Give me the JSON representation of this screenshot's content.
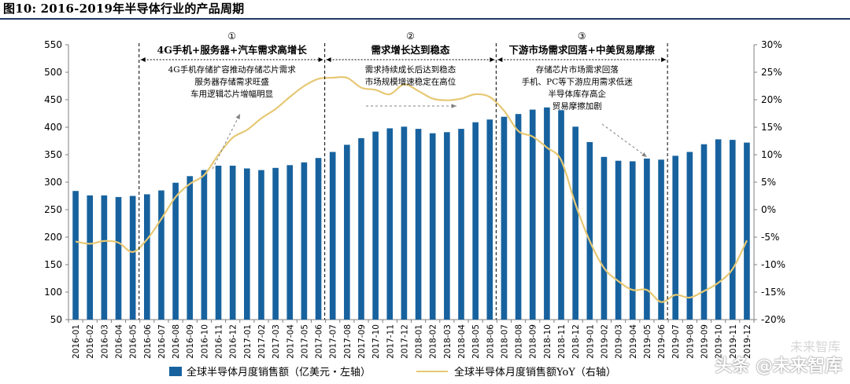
{
  "figure_title": "图10:  2016-2019年半导体行业的产品周期",
  "watermark_top": "未来智库",
  "watermark_bottom": "头条 @未来智库",
  "legend": {
    "bar_label": "全球半导体月度销售额（亿美元・左轴）",
    "line_label": "全球半导体月度销售额YoY（右轴）"
  },
  "colors": {
    "bar": "#17629e",
    "line": "#e6c874",
    "title_rule": "#1f3864"
  },
  "phases": [
    {
      "marker": "①",
      "title": "4G手机+服务器+汽车需求高增长",
      "notes": [
        "4G手机存储扩容推动存储芯片需求",
        "服务器存储需求旺盛",
        "车用逻辑芯片增幅明显"
      ]
    },
    {
      "marker": "②",
      "title": "需求增长达到稳态",
      "notes": [
        "需求持续成长后达到稳态",
        "市场规模增速稳定在高位"
      ]
    },
    {
      "marker": "③",
      "title": "下游市场需求回落+中美贸易摩擦",
      "notes": [
        "存储芯片市场需求回落",
        "手机、PC等下游应用需求低迷",
        "半导体库存高企",
        "贸易摩擦加剧"
      ]
    }
  ],
  "chart_data": {
    "type": "bar+line",
    "title": "2016-2019年半导体行业的产品周期",
    "categories": [
      "2016-01",
      "2016-02",
      "2016-03",
      "2016-04",
      "2016-05",
      "2016-06",
      "2016-07",
      "2016-08",
      "2016-09",
      "2016-10",
      "2016-11",
      "2016-12",
      "2017-01",
      "2017-02",
      "2017-03",
      "2017-04",
      "2017-05",
      "2017-06",
      "2017-07",
      "2017-08",
      "2017-09",
      "2017-10",
      "2017-11",
      "2017-12",
      "2018-01",
      "2018-02",
      "2018-03",
      "2018-04",
      "2018-05",
      "2018-06",
      "2018-07",
      "2018-08",
      "2018-09",
      "2018-10",
      "2018-11",
      "2018-12",
      "2019-01",
      "2019-02",
      "2019-03",
      "2019-04",
      "2019-05",
      "2019-06",
      "2019-07",
      "2019-08",
      "2019-09",
      "2019-10",
      "2019-11",
      "2019-12"
    ],
    "series": [
      {
        "name": "全球半导体月度销售额（亿美元・左轴）",
        "type": "bar",
        "axis": "left",
        "values": [
          284,
          276,
          276,
          273,
          275,
          278,
          285,
          299,
          311,
          322,
          330,
          330,
          325,
          322,
          326,
          331,
          336,
          344,
          355,
          368,
          380,
          392,
          398,
          401,
          397,
          389,
          391,
          397,
          409,
          414,
          419,
          424,
          432,
          436,
          431,
          401,
          373,
          346,
          339,
          338,
          343,
          341,
          348,
          355,
          369,
          378,
          377,
          372
        ]
      },
      {
        "name": "全球半导体月度销售额YoY（右轴）",
        "type": "line",
        "axis": "right",
        "values": [
          -5.8,
          -6.2,
          -5.7,
          -6.0,
          -7.7,
          -5.4,
          -1.7,
          2.3,
          4.7,
          6.3,
          10.0,
          13.1,
          14.5,
          16.6,
          18.3,
          20.5,
          22.5,
          23.8,
          24.0,
          24.0,
          22.2,
          21.8,
          21.0,
          22.8,
          21.6,
          20.2,
          19.9,
          20.2,
          21.0,
          20.5,
          18.0,
          14.3,
          13.3,
          11.3,
          9.0,
          1.0,
          -5.7,
          -10.6,
          -13.0,
          -14.6,
          -14.6,
          -16.8,
          -15.5,
          -16.0,
          -14.8,
          -13.3,
          -10.8,
          -5.6
        ]
      }
    ],
    "y_left": {
      "min": 50,
      "max": 550,
      "ticks": [
        50,
        100,
        150,
        200,
        250,
        300,
        350,
        400,
        450,
        500,
        550
      ]
    },
    "y_right": {
      "min": -20,
      "max": 30,
      "ticks": [
        "-20%",
        "-15%",
        "-10%",
        "-5%",
        "0%",
        "5%",
        "10%",
        "15%",
        "20%",
        "25%",
        "30%"
      ]
    },
    "phase_boundaries_after": [
      "2016-05",
      "2017-06",
      "2018-06",
      "2019-06"
    ],
    "legend_position": "bottom",
    "grid": false
  }
}
